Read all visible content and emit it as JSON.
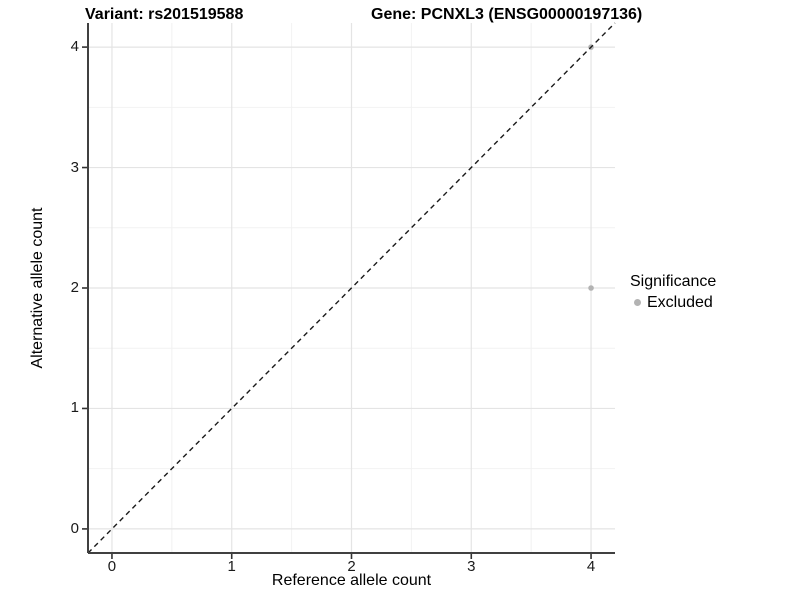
{
  "chart_data": {
    "type": "scatter",
    "title_left": "Variant: rs201519588",
    "title_right": "Gene: PCNXL3 (ENSG00000197136)",
    "xlabel": "Reference allele count",
    "ylabel": "Alternative allele count",
    "xlim": [
      -0.2,
      4.2
    ],
    "ylim": [
      -0.2,
      4.2
    ],
    "x_ticks": [
      0,
      1,
      2,
      3,
      4
    ],
    "y_ticks": [
      0,
      1,
      2,
      3,
      4
    ],
    "x_minor_ticks": [
      0.5,
      1.5,
      2.5,
      3.5
    ],
    "y_minor_ticks": [
      0.5,
      1.5,
      2.5,
      3.5
    ],
    "grid": true,
    "identity_line": {
      "equation": "y = x",
      "style": "dashed",
      "color": "#1a1a1a"
    },
    "series": [
      {
        "name": "Excluded",
        "color": "#b3b3b3",
        "points": [
          {
            "x": 4,
            "y": 2
          },
          {
            "x": 4,
            "y": 4
          }
        ]
      }
    ],
    "legend": {
      "title": "Significance",
      "position": "right",
      "items": [
        {
          "label": "Excluded",
          "color": "#b3b3b3"
        }
      ]
    },
    "colors": {
      "background": "#ffffff",
      "grid_major": "#e4e4e4",
      "grid_minor": "#f2f2f2",
      "axis_line": "#404040",
      "tick_mark": "#333333",
      "text": "#000000"
    }
  }
}
